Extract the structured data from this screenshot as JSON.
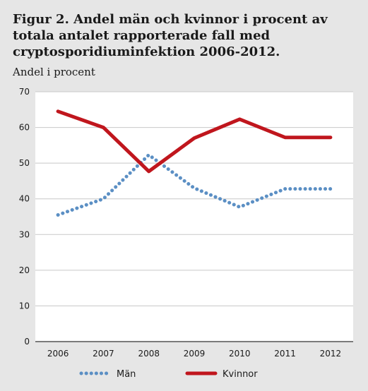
{
  "figure": {
    "title": "Figur 2. Andel män och kvinnor i procent av totala antalet rapporterade fall med cryptosporidiuminfektion 2006-2012.",
    "ylabel": "Andel i procent"
  },
  "chart_data": {
    "type": "line",
    "title": "Figur 2. Andel män och kvinnor i procent av totala antalet rapporterade fall med cryptosporidiuminfektion 2006-2012.",
    "xlabel": "",
    "ylabel": "Andel i procent",
    "categories": [
      "2006",
      "2007",
      "2008",
      "2009",
      "2010",
      "2011",
      "2012"
    ],
    "ylim": [
      0,
      70
    ],
    "yticks": [
      0,
      10,
      20,
      30,
      40,
      50,
      60,
      70
    ],
    "grid": true,
    "legend_position": "bottom",
    "series": [
      {
        "name": "Män",
        "values": [
          35.5,
          40,
          52.3,
          43,
          37.7,
          42.8,
          42.8
        ],
        "color": "#5b8fc4",
        "style": "dotted"
      },
      {
        "name": "Kvinnor",
        "values": [
          64.5,
          60,
          47.7,
          57,
          62.3,
          57.2,
          57.2
        ],
        "color": "#c0161d",
        "style": "solid"
      }
    ]
  }
}
